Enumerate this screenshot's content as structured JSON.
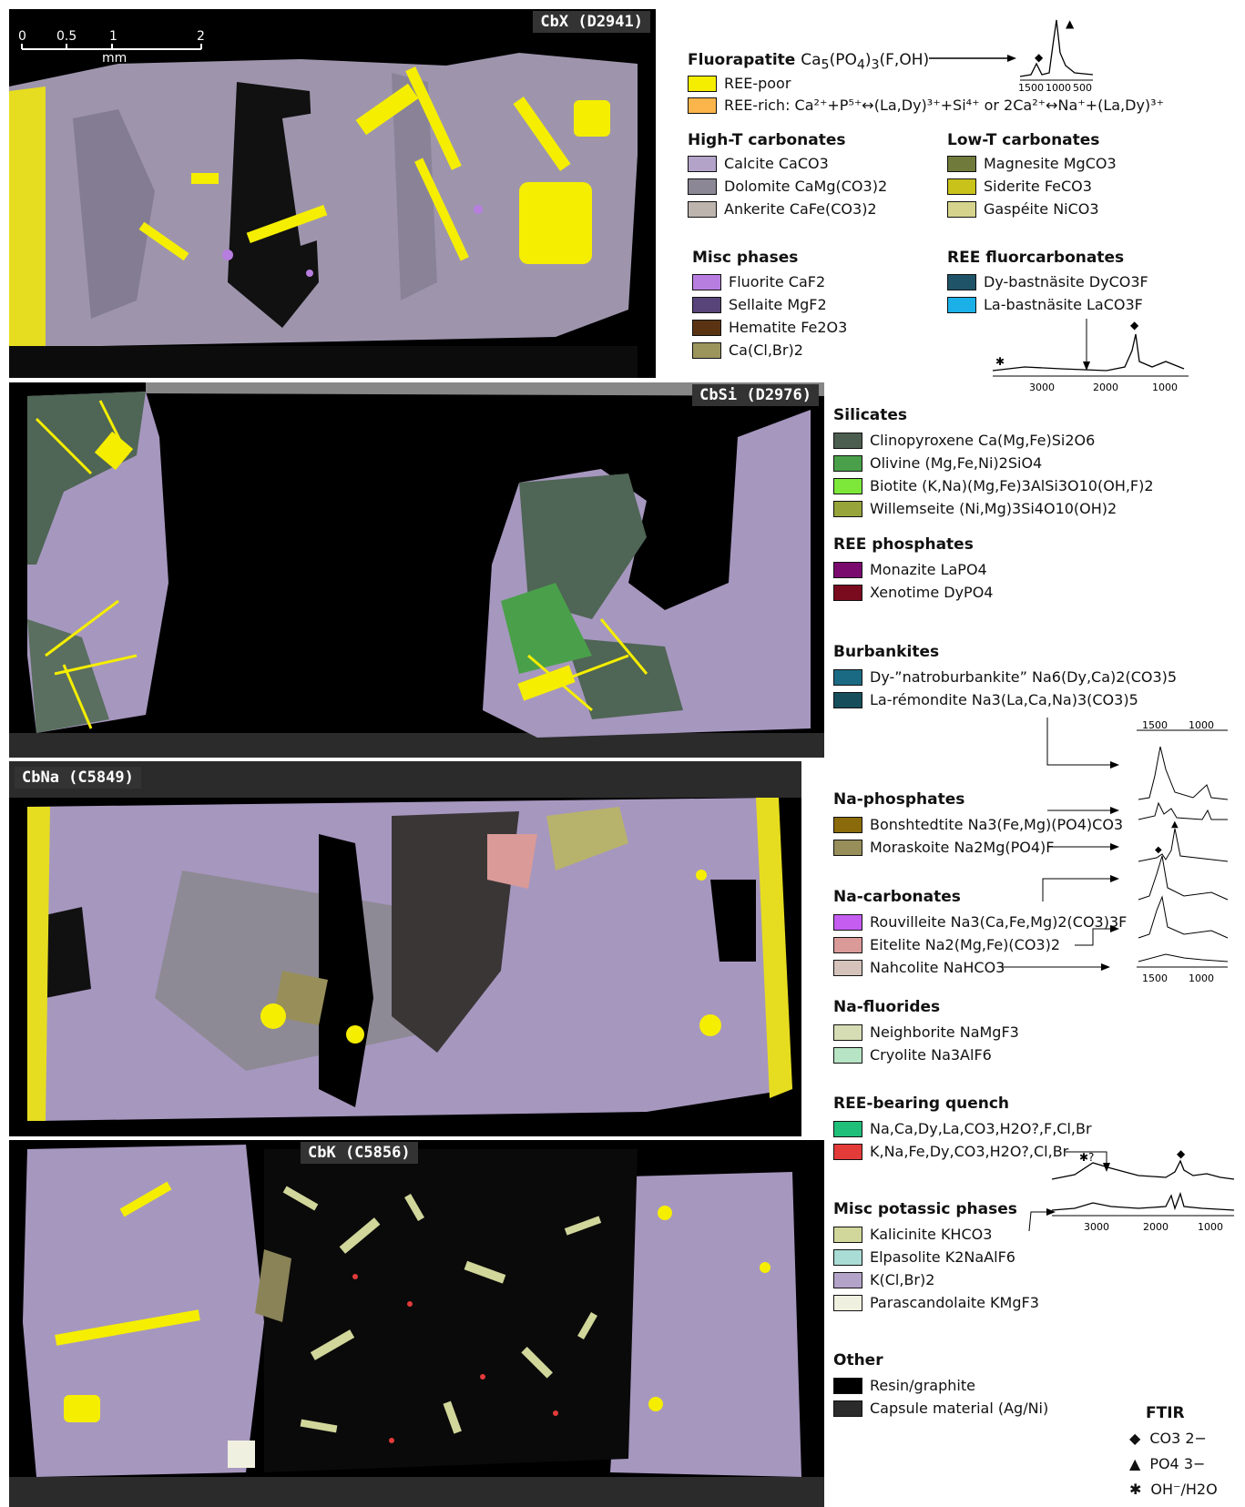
{
  "panels": [
    {
      "label": "CbX (D2941)"
    },
    {
      "label": "CbSi (D2976)"
    },
    {
      "label": "CbNa (C5849)"
    },
    {
      "label": "CbK (C5856)"
    }
  ],
  "scalebar": {
    "ticks": [
      "0",
      "0.5",
      "1",
      "2"
    ],
    "unit": "mm"
  },
  "legend": {
    "fluorapatite": {
      "title": "Fluorapatite",
      "formula": "Ca5(PO4)3(F,OH)",
      "items": [
        {
          "label": "REE-poor",
          "color": "#f5ee00"
        },
        {
          "label": "REE-rich: Ca²⁺+P⁵⁺↔(La,Dy)³⁺+Si⁴⁺ or 2Ca²⁺↔Na⁺+(La,Dy)³⁺",
          "color": "#f9b44a"
        }
      ]
    },
    "high_t_carbonates": {
      "title": "High-T carbonates",
      "items": [
        {
          "label": "Calcite CaCO3",
          "color": "#b3a3c9"
        },
        {
          "label": "Dolomite CaMg(CO3)2",
          "color": "#8b8794"
        },
        {
          "label": "Ankerite CaFe(CO3)2",
          "color": "#bdb4ae"
        }
      ]
    },
    "low_t_carbonates": {
      "title": "Low-T carbonates",
      "items": [
        {
          "label": "Magnesite MgCO3",
          "color": "#6f7a3b"
        },
        {
          "label": "Siderite FeCO3",
          "color": "#c9c21a"
        },
        {
          "label": "Gaspéite NiCO3",
          "color": "#d6d48c"
        }
      ]
    },
    "misc_phases": {
      "title": "Misc phases",
      "items": [
        {
          "label": "Fluorite CaF2",
          "color": "#b77ee0"
        },
        {
          "label": "Sellaite MgF2",
          "color": "#584479"
        },
        {
          "label": "Hematite Fe2O3",
          "color": "#5a3412"
        },
        {
          "label": "Ca(Cl,Br)2",
          "color": "#9b955c"
        }
      ]
    },
    "ree_fluorcarbonates": {
      "title": "REE fluorcarbonates",
      "items": [
        {
          "label": "Dy-bastnäsite DyCO3F",
          "color": "#1f5367"
        },
        {
          "label": "La-bastnäsite LaCO3F",
          "color": "#1bb0e8"
        }
      ]
    },
    "silicates": {
      "title": "Silicates",
      "items": [
        {
          "label": "Clinopyroxene Ca(Mg,Fe)Si2O6",
          "color": "#4c5e50"
        },
        {
          "label": "Olivine (Mg,Fe,Ni)2SiO4",
          "color": "#4aa04a"
        },
        {
          "label": "Biotite (K,Na)(Mg,Fe)3AlSi3O10(OH,F)2",
          "color": "#7de83a"
        },
        {
          "label": "Willemseite (Ni,Mg)3Si4O10(OH)2",
          "color": "#96a43a"
        }
      ]
    },
    "ree_phosphates": {
      "title": "REE phosphates",
      "items": [
        {
          "label": "Monazite LaPO4",
          "color": "#7a0a6e"
        },
        {
          "label": "Xenotime DyPO4",
          "color": "#7a0a1e"
        }
      ]
    },
    "burbankites": {
      "title": "Burbankites",
      "items": [
        {
          "label": "Dy-”natroburbankite” Na6(Dy,Ca)2(CO3)5",
          "color": "#1b6a84"
        },
        {
          "label": "La-rémondite Na3(La,Ca,Na)3(CO3)5",
          "color": "#174e5c"
        }
      ]
    },
    "na_phosphates": {
      "title": "Na-phosphates",
      "items": [
        {
          "label": "Bonshtedtite Na3(Fe,Mg)(PO4)CO3",
          "color": "#8a6a0a"
        },
        {
          "label": "Moraskoite Na2Mg(PO4)F",
          "color": "#978e5a"
        }
      ]
    },
    "na_carbonates": {
      "title": "Na-carbonates",
      "items": [
        {
          "label": "Rouvilleite Na3(Ca,Fe,Mg)2(CO3)3F",
          "color": "#c45df0"
        },
        {
          "label": "Eitelite Na2(Mg,Fe)(CO3)2",
          "color": "#d99a98"
        },
        {
          "label": "Nahcolite NaHCO3",
          "color": "#d4c2bb"
        }
      ]
    },
    "na_fluorides": {
      "title": "Na-fluorides",
      "items": [
        {
          "label": "Neighborite NaMgF3",
          "color": "#d6ddb4"
        },
        {
          "label": "Cryolite Na3AlF6",
          "color": "#b7e4c4"
        }
      ]
    },
    "ree_quench": {
      "title": "REE-bearing quench",
      "items": [
        {
          "label": "Na,Ca,Dy,La,CO3,H2O?,F,Cl,Br",
          "color": "#1fbf7a"
        },
        {
          "label": "K,Na,Fe,Dy,CO3,H2O?,Cl,Br",
          "color": "#e33a3a"
        }
      ]
    },
    "misc_potassic": {
      "title": "Misc potassic phases",
      "items": [
        {
          "label": "Kalicinite KHCO3",
          "color": "#d1d69a"
        },
        {
          "label": "Elpasolite K2NaAlF6",
          "color": "#a9dcd4"
        },
        {
          "label": "K(Cl,Br)2",
          "color": "#b3a3c9"
        },
        {
          "label": "Parascandolaite KMgF3",
          "color": "#f0f0e0"
        }
      ]
    },
    "other": {
      "title": "Other",
      "items": [
        {
          "label": "Resin/graphite",
          "color": "#000000"
        },
        {
          "label": "Capsule material (Ag/Ni)",
          "color": "#2b2b2b"
        }
      ]
    }
  },
  "ftir": {
    "title": "FTIR",
    "keys": [
      {
        "symbol": "◆",
        "label": "CO3 2−"
      },
      {
        "symbol": "▲",
        "label": "PO4 3−"
      },
      {
        "symbol": "✱",
        "label": "OH⁻/H2O"
      }
    ],
    "axis_small": [
      "1500",
      "1000",
      "500"
    ],
    "axis_mid": [
      "3000",
      "2000",
      "1000"
    ],
    "axis_na": [
      "1500",
      "1000"
    ],
    "axis_k": [
      "3000",
      "2000",
      "1000"
    ],
    "quench_mark": "✱?"
  }
}
